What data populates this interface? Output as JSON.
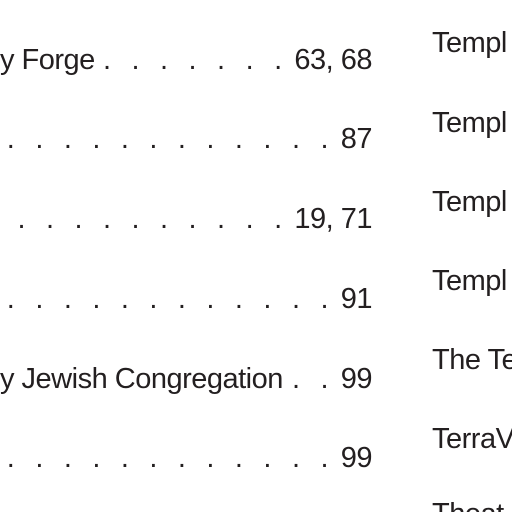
{
  "left_column": {
    "entries": [
      {
        "label": "y Forge",
        "pages": "63, 68"
      },
      {
        "label": "",
        "pages": "87"
      },
      {
        "label": "",
        "pages": "19, 71"
      },
      {
        "label": "",
        "pages": "91"
      },
      {
        "label": "y Jewish Congregation",
        "pages": "99"
      },
      {
        "label": "",
        "pages": "99"
      }
    ]
  },
  "right_column": {
    "entries": [
      {
        "label": "Templ"
      },
      {
        "label": "Templ"
      },
      {
        "label": "Templ"
      },
      {
        "label": "Templ"
      },
      {
        "label": "The Te"
      },
      {
        "label": "TerraV"
      },
      {
        "label": "Theat"
      }
    ]
  }
}
